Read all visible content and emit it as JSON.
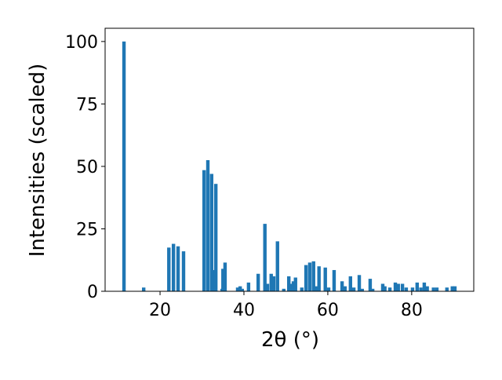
{
  "chart_data": {
    "type": "bar",
    "x_label": "2θ (°)",
    "y_label": "Intensities (scaled)",
    "color": "#1f77b4",
    "x": [
      11.4,
      16.1,
      22.1,
      23.2,
      24.3,
      25.6,
      30.5,
      31.4,
      32.3,
      32.9,
      33.3,
      34.8,
      35.0,
      35.5,
      38.5,
      39.1,
      39.6,
      41.1,
      43.4,
      45.0,
      45.6,
      46.5,
      47.1,
      48.0,
      49.5,
      50.7,
      51.2,
      51.8,
      52.3,
      53.8,
      54.8,
      55.7,
      56.6,
      57.2,
      57.9,
      59.4,
      60.2,
      61.5,
      63.4,
      64.1,
      65.4,
      66.2,
      67.5,
      68.2,
      70.1,
      70.7,
      73.1,
      73.6,
      74.8,
      76.1,
      76.8,
      77.8,
      78.7,
      80.2,
      81.3,
      82.2,
      83.0,
      83.7,
      85.2,
      86.0,
      88.4,
      89.7,
      90.3
    ],
    "values": [
      100,
      1.5,
      17.5,
      19,
      18,
      16,
      48.5,
      52.5,
      47,
      8.5,
      43,
      1,
      9,
      11.5,
      1.5,
      2,
      1,
      3.5,
      7,
      27,
      3,
      7,
      6,
      20,
      1,
      6,
      3,
      4,
      5.5,
      1.5,
      10.5,
      11.5,
      12,
      2,
      10,
      9.5,
      1.5,
      8.5,
      4,
      2,
      6,
      1.5,
      6.5,
      1,
      5,
      1,
      3,
      2,
      1.5,
      3.5,
      3,
      3,
      1.5,
      1.5,
      3.5,
      1.5,
      3.5,
      2,
      1.5,
      1.5,
      1.5,
      2,
      2
    ],
    "xlim": [
      6.9,
      94.8
    ],
    "ylim": [
      0,
      105.3
    ],
    "xticks": [
      20,
      40,
      60,
      80
    ],
    "yticks": [
      0,
      25,
      50,
      75,
      100
    ]
  }
}
